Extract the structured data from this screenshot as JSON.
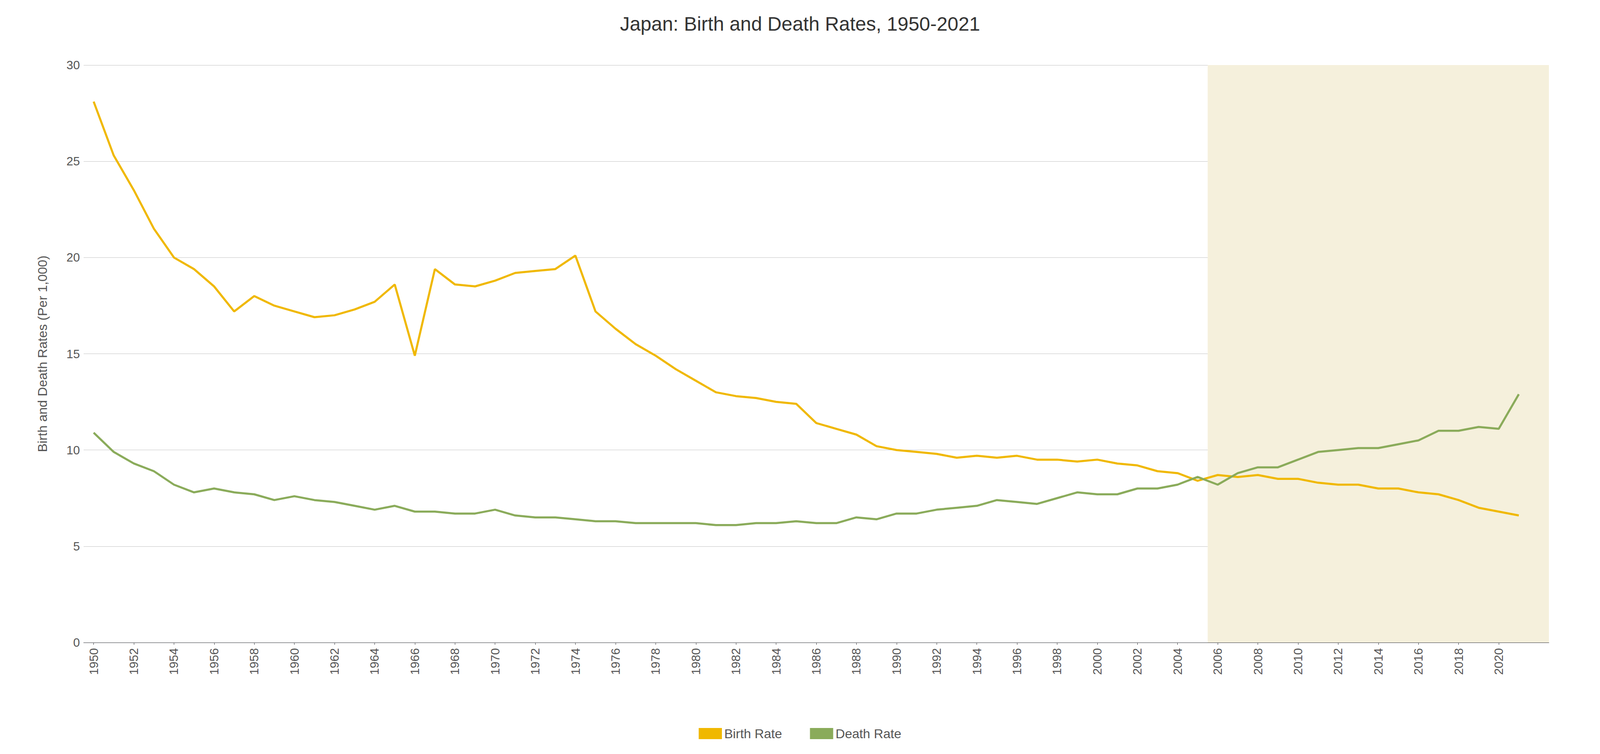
{
  "chart_data": {
    "type": "line",
    "title": "Japan: Birth and Death Rates, 1950-2021",
    "ylabel": "Birth and Death Rates (Per 1,000)",
    "x": [
      1950,
      1951,
      1952,
      1953,
      1954,
      1955,
      1956,
      1957,
      1958,
      1959,
      1960,
      1961,
      1962,
      1963,
      1964,
      1965,
      1966,
      1967,
      1968,
      1969,
      1970,
      1971,
      1972,
      1973,
      1974,
      1975,
      1976,
      1977,
      1978,
      1979,
      1980,
      1981,
      1982,
      1983,
      1984,
      1985,
      1986,
      1987,
      1988,
      1989,
      1990,
      1991,
      1992,
      1993,
      1994,
      1995,
      1996,
      1997,
      1998,
      1999,
      2000,
      2001,
      2002,
      2003,
      2004,
      2005,
      2006,
      2007,
      2008,
      2009,
      2010,
      2011,
      2012,
      2013,
      2014,
      2015,
      2016,
      2017,
      2018,
      2019,
      2020,
      2021
    ],
    "series": [
      {
        "name": "Birth Rate",
        "color": "#f0b800",
        "values": [
          28.1,
          25.3,
          23.5,
          21.5,
          20.0,
          19.4,
          18.5,
          17.2,
          18.0,
          17.5,
          17.2,
          16.9,
          17.0,
          17.3,
          17.7,
          18.6,
          14.9,
          19.4,
          18.6,
          18.5,
          18.8,
          19.2,
          19.3,
          19.4,
          20.1,
          17.2,
          16.3,
          15.5,
          14.9,
          14.2,
          13.6,
          13.0,
          12.8,
          12.7,
          12.5,
          12.4,
          11.4,
          11.1,
          10.8,
          10.2,
          10.0,
          9.9,
          9.8,
          9.6,
          9.7,
          9.6,
          9.7,
          9.5,
          9.5,
          9.4,
          9.5,
          9.3,
          9.2,
          8.9,
          8.8,
          8.4,
          8.7,
          8.6,
          8.7,
          8.5,
          8.5,
          8.3,
          8.2,
          8.2,
          8.0,
          8.0,
          7.8,
          7.7,
          7.4,
          7.0,
          6.8,
          6.6
        ]
      },
      {
        "name": "Death Rate",
        "color": "#8aab5a",
        "values": [
          10.9,
          9.9,
          9.3,
          8.9,
          8.2,
          7.8,
          8.0,
          7.8,
          7.7,
          7.4,
          7.6,
          7.4,
          7.3,
          7.1,
          6.9,
          7.1,
          6.8,
          6.8,
          6.7,
          6.7,
          6.9,
          6.6,
          6.5,
          6.5,
          6.4,
          6.3,
          6.3,
          6.2,
          6.2,
          6.2,
          6.2,
          6.1,
          6.1,
          6.2,
          6.2,
          6.3,
          6.2,
          6.2,
          6.5,
          6.4,
          6.7,
          6.7,
          6.9,
          7.0,
          7.1,
          7.4,
          7.3,
          7.2,
          7.5,
          7.8,
          7.7,
          7.7,
          8.0,
          8.0,
          8.2,
          8.6,
          8.2,
          8.8,
          9.1,
          9.1,
          9.5,
          9.9,
          10.0,
          10.1,
          10.1,
          10.3,
          10.5,
          11.0,
          11.0,
          11.2,
          11.1,
          12.9
        ]
      }
    ],
    "xlim": [
      1949.5,
      2022.5
    ],
    "xticks": [
      1950,
      1952,
      1954,
      1956,
      1958,
      1960,
      1962,
      1964,
      1966,
      1968,
      1970,
      1972,
      1974,
      1976,
      1978,
      1980,
      1982,
      1984,
      1986,
      1988,
      1990,
      1992,
      1994,
      1996,
      1998,
      2000,
      2002,
      2004,
      2006,
      2008,
      2010,
      2012,
      2014,
      2016,
      2018,
      2020
    ],
    "ylim": [
      0,
      30
    ],
    "yticks": [
      0,
      5,
      10,
      15,
      20,
      25,
      30
    ],
    "highlight": {
      "from": 2005.5,
      "to": 2022.5,
      "color": "#f5f0dc"
    },
    "grid": "y",
    "legend": "bottom"
  }
}
